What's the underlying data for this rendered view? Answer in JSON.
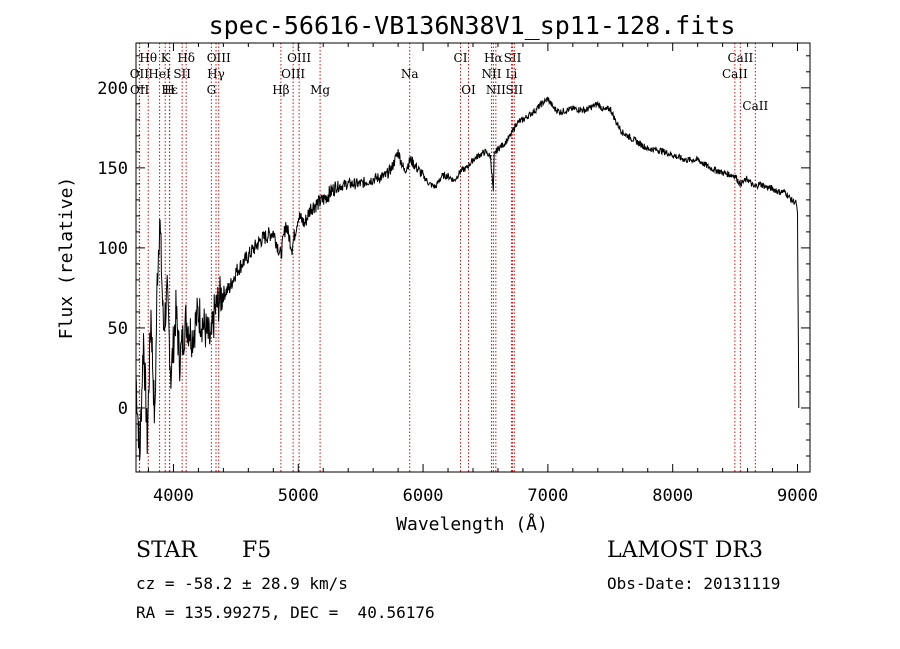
{
  "chart_data": {
    "type": "line",
    "title": "spec-56616-VB136N38V1_sp11-128.fits",
    "xlabel": "Wavelength (Å)",
    "ylabel": "Flux (relative)",
    "xlim": [
      3700,
      9100
    ],
    "ylim": [
      -40,
      228
    ],
    "xticks": [
      4000,
      5000,
      6000,
      7000,
      8000,
      9000
    ],
    "xtick_labels": [
      "4000",
      "5000",
      "6000",
      "7000",
      "8000",
      "9000"
    ],
    "yticks": [
      0,
      50,
      100,
      150,
      200
    ],
    "ytick_labels": [
      "0",
      "50",
      "100",
      "150",
      "200"
    ],
    "series": [
      {
        "name": "spectrum",
        "x": [
          3700,
          3730,
          3760,
          3790,
          3820,
          3850,
          3870,
          3890,
          3920,
          3950,
          3980,
          4020,
          4050,
          4100,
          4150,
          4200,
          4250,
          4300,
          4330,
          4380,
          4450,
          4500,
          4600,
          4700,
          4800,
          4860,
          4900,
          4950,
          5000,
          5050,
          5100,
          5200,
          5300,
          5400,
          5500,
          5600,
          5700,
          5750,
          5800,
          5850,
          5900,
          5950,
          6000,
          6050,
          6100,
          6150,
          6200,
          6250,
          6300,
          6350,
          6400,
          6450,
          6500,
          6540,
          6563,
          6570,
          6600,
          6650,
          6700,
          6750,
          6800,
          6850,
          6900,
          6950,
          7000,
          7050,
          7100,
          7200,
          7300,
          7400,
          7450,
          7500,
          7550,
          7600,
          7700,
          7800,
          7900,
          8000,
          8100,
          8200,
          8300,
          8400,
          8500,
          8540,
          8600,
          8650,
          8700,
          8750,
          8800,
          8850,
          8900,
          8950,
          8990,
          9000,
          9010
        ],
        "values": [
          20,
          -30,
          45,
          -20,
          60,
          -10,
          80,
          120,
          50,
          70,
          20,
          60,
          30,
          55,
          45,
          60,
          50,
          40,
          60,
          70,
          75,
          85,
          95,
          105,
          110,
          95,
          115,
          100,
          120,
          115,
          125,
          130,
          138,
          140,
          140,
          143,
          145,
          150,
          160,
          148,
          155,
          150,
          145,
          140,
          138,
          145,
          145,
          142,
          148,
          150,
          155,
          158,
          160,
          157,
          135,
          158,
          162,
          165,
          170,
          178,
          180,
          183,
          186,
          190,
          193,
          187,
          185,
          187,
          186,
          190,
          186,
          187,
          178,
          172,
          167,
          162,
          161,
          158,
          155,
          155,
          150,
          147,
          145,
          140,
          143,
          138,
          140,
          138,
          137,
          135,
          135,
          130,
          128,
          120,
          0
        ]
      }
    ],
    "lines": [
      {
        "label": "Hθ",
        "x": 3798
      },
      {
        "label": "K",
        "x": 3934
      },
      {
        "label": "Hδ",
        "x": 4102
      },
      {
        "label": "OIII",
        "x": 4363
      },
      {
        "label": "OIII",
        "x": 5007
      },
      {
        "label": "CI",
        "x": 6300
      },
      {
        "label": "Hα",
        "x": 6563
      },
      {
        "label": "SII",
        "x": 6717
      },
      {
        "label": "CaII",
        "x": 8542
      },
      {
        "label": "OII",
        "x": 3727
      },
      {
        "label": "HeI",
        "x": 3889
      },
      {
        "label": "SII",
        "x": 4070
      },
      {
        "label": "Hγ",
        "x": 4341
      },
      {
        "label": "OIII",
        "x": 4959
      },
      {
        "label": "Na",
        "x": 5893
      },
      {
        "label": "NII",
        "x": 6548
      },
      {
        "label": "Li",
        "x": 6708
      },
      {
        "label": "CaII",
        "x": 8498
      },
      {
        "label": "OII",
        "x": 3729
      },
      {
        "label": "Hε",
        "x": 3970
      },
      {
        "label": "H",
        "x": 3968
      },
      {
        "label": "G",
        "x": 4304
      },
      {
        "label": "Hβ",
        "x": 4861
      },
      {
        "label": "Mg",
        "x": 5175
      },
      {
        "label": "OI",
        "x": 6364
      },
      {
        "label": "NII",
        "x": 6583
      },
      {
        "label": "SII",
        "x": 6731
      },
      {
        "label": "CaII",
        "x": 8662
      }
    ]
  },
  "info": {
    "object_class": "STAR",
    "subclass": "F5",
    "survey": "LAMOST DR3",
    "redshift": "cz = -58.2 ± 28.9 km/s",
    "obs_date": "Obs-Date: 20131119",
    "coords": "RA = 135.99275, DEC =  40.56176"
  }
}
